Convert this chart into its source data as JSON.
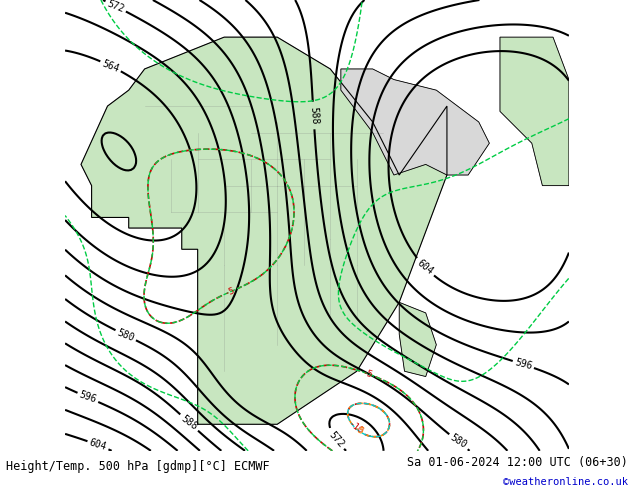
{
  "title_left": "Height/Temp. 500 hPa [gdmp][°C] ECMWF",
  "title_right": "Sa 01-06-2024 12:00 UTC (06+30)",
  "credit": "©weatheronline.co.uk",
  "background_color": "#d0d0d0",
  "land_color": "#c8e6c0",
  "sea_color": "#d8d8d8",
  "z500_color": "#000000",
  "temp_neg_color": "#cc0000",
  "temp_pos_color": "#ff8800",
  "temp_green_color": "#00cc44",
  "temp_cyan_color": "#00cccc",
  "slp_color": "#ff8800",
  "figsize": [
    6.34,
    4.9
  ],
  "dpi": 100
}
